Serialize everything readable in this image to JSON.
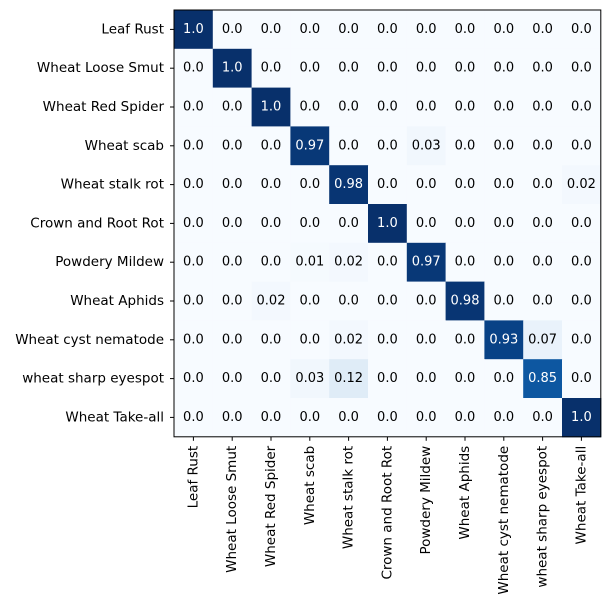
{
  "chart_data": {
    "type": "heatmap",
    "title": "",
    "xlabel": "",
    "ylabel": "",
    "colormap": "Blues",
    "value_range": [
      0,
      1
    ],
    "rows": [
      "Leaf Rust",
      "Wheat Loose Smut",
      "Wheat Red Spider",
      "Wheat scab",
      "Wheat stalk rot",
      "Crown and Root Rot",
      "Powdery Mildew",
      "Wheat Aphids",
      "Wheat cyst nematode",
      "wheat sharp eyespot",
      "Wheat Take-all"
    ],
    "columns": [
      "Leaf Rust",
      "Wheat Loose Smut",
      "Wheat Red Spider",
      "Wheat scab",
      "Wheat stalk rot",
      "Crown and Root Rot",
      "Powdery Mildew",
      "Wheat Aphids",
      "Wheat cyst nematode",
      "wheat sharp eyespot",
      "Wheat Take-all"
    ],
    "values": [
      [
        1.0,
        0.0,
        0.0,
        0.0,
        0.0,
        0.0,
        0.0,
        0.0,
        0.0,
        0.0,
        0.0
      ],
      [
        0.0,
        1.0,
        0.0,
        0.0,
        0.0,
        0.0,
        0.0,
        0.0,
        0.0,
        0.0,
        0.0
      ],
      [
        0.0,
        0.0,
        1.0,
        0.0,
        0.0,
        0.0,
        0.0,
        0.0,
        0.0,
        0.0,
        0.0
      ],
      [
        0.0,
        0.0,
        0.0,
        0.97,
        0.0,
        0.0,
        0.03,
        0.0,
        0.0,
        0.0,
        0.0
      ],
      [
        0.0,
        0.0,
        0.0,
        0.0,
        0.98,
        0.0,
        0.0,
        0.0,
        0.0,
        0.0,
        0.02
      ],
      [
        0.0,
        0.0,
        0.0,
        0.0,
        0.0,
        1.0,
        0.0,
        0.0,
        0.0,
        0.0,
        0.0
      ],
      [
        0.0,
        0.0,
        0.0,
        0.01,
        0.02,
        0.0,
        0.97,
        0.0,
        0.0,
        0.0,
        0.0
      ],
      [
        0.0,
        0.0,
        0.02,
        0.0,
        0.0,
        0.0,
        0.0,
        0.98,
        0.0,
        0.0,
        0.0
      ],
      [
        0.0,
        0.0,
        0.0,
        0.0,
        0.02,
        0.0,
        0.0,
        0.0,
        0.93,
        0.07,
        0.0
      ],
      [
        0.0,
        0.0,
        0.0,
        0.03,
        0.12,
        0.0,
        0.0,
        0.0,
        0.0,
        0.85,
        0.0
      ],
      [
        0.0,
        0.0,
        0.0,
        0.0,
        0.0,
        0.0,
        0.0,
        0.0,
        0.0,
        0.0,
        1.0
      ]
    ],
    "cell_labels": [
      [
        "1.0",
        "0.0",
        "0.0",
        "0.0",
        "0.0",
        "0.0",
        "0.0",
        "0.0",
        "0.0",
        "0.0",
        "0.0"
      ],
      [
        "0.0",
        "1.0",
        "0.0",
        "0.0",
        "0.0",
        "0.0",
        "0.0",
        "0.0",
        "0.0",
        "0.0",
        "0.0"
      ],
      [
        "0.0",
        "0.0",
        "1.0",
        "0.0",
        "0.0",
        "0.0",
        "0.0",
        "0.0",
        "0.0",
        "0.0",
        "0.0"
      ],
      [
        "0.0",
        "0.0",
        "0.0",
        "0.97",
        "0.0",
        "0.0",
        "0.03",
        "0.0",
        "0.0",
        "0.0",
        "0.0"
      ],
      [
        "0.0",
        "0.0",
        "0.0",
        "0.0",
        "0.98",
        "0.0",
        "0.0",
        "0.0",
        "0.0",
        "0.0",
        "0.02"
      ],
      [
        "0.0",
        "0.0",
        "0.0",
        "0.0",
        "0.0",
        "1.0",
        "0.0",
        "0.0",
        "0.0",
        "0.0",
        "0.0"
      ],
      [
        "0.0",
        "0.0",
        "0.0",
        "0.01",
        "0.02",
        "0.0",
        "0.97",
        "0.0",
        "0.0",
        "0.0",
        "0.0"
      ],
      [
        "0.0",
        "0.0",
        "0.02",
        "0.0",
        "0.0",
        "0.0",
        "0.0",
        "0.98",
        "0.0",
        "0.0",
        "0.0"
      ],
      [
        "0.0",
        "0.0",
        "0.0",
        "0.0",
        "0.02",
        "0.0",
        "0.0",
        "0.0",
        "0.93",
        "0.07",
        "0.0"
      ],
      [
        "0.0",
        "0.0",
        "0.0",
        "0.03",
        "0.12",
        "0.0",
        "0.0",
        "0.0",
        "0.0",
        "0.85",
        "0.0"
      ],
      [
        "0.0",
        "0.0",
        "0.0",
        "0.0",
        "0.0",
        "0.0",
        "0.0",
        "0.0",
        "0.0",
        "0.0",
        "1.0"
      ]
    ],
    "text_colors": {
      "dark_cell": "#ffffff",
      "light_cell": "#000000"
    },
    "grid": false,
    "legend": "none"
  }
}
